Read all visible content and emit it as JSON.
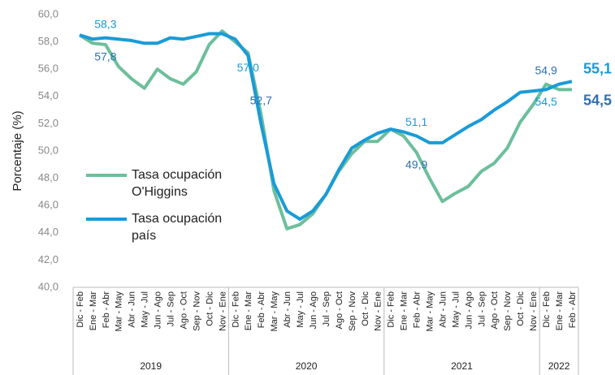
{
  "chart_data": {
    "type": "line",
    "y_label": "Porcentaje (%)",
    "ylim": [
      40,
      60
    ],
    "yticks": [
      {
        "value": 40,
        "label": "40,0"
      },
      {
        "value": 42,
        "label": "42,0"
      },
      {
        "value": 44,
        "label": "44,0"
      },
      {
        "value": 46,
        "label": "46,0"
      },
      {
        "value": 48,
        "label": "48,0"
      },
      {
        "value": 50,
        "label": "50,0"
      },
      {
        "value": 52,
        "label": "52,0"
      },
      {
        "value": 54,
        "label": "54,0"
      },
      {
        "value": 56,
        "label": "56,0"
      },
      {
        "value": 58,
        "label": "58,0"
      },
      {
        "value": 60,
        "label": "60,0"
      }
    ],
    "grid": false,
    "legend": "left",
    "groups": [
      {
        "name": "2019",
        "categories": [
          "Dic - Feb",
          "Ene - Mar",
          "Feb - Abr",
          "Mar - May",
          "Abr - Jun",
          "May - Jul",
          "Jun - Ago",
          "Jul - Sep",
          "Ago - Oct",
          "Sep - Nov",
          "Oct - Dic",
          "Nov - Ene"
        ]
      },
      {
        "name": "2020",
        "categories": [
          "Dic - Feb",
          "Ene - Mar",
          "Feb - Abr",
          "Mar - May",
          "Abr - Jun",
          "May - Jul",
          "Jun - Ago",
          "Jul - Sep",
          "Ago - Oct",
          "Sep - Nov",
          "Oct - Dic",
          "Nov - Ene"
        ]
      },
      {
        "name": "2021",
        "categories": [
          "Dic - Feb",
          "Ene - Mar",
          "Feb - Abr",
          "Mar - May",
          "Abr - Jun",
          "May - Jul",
          "Jun - Ago",
          "Jul - Sep",
          "Ago - Oct",
          "Sep - Nov",
          "Oct - Dic",
          "Nov - Ene"
        ]
      },
      {
        "name": "2022",
        "categories": [
          "Dic - Feb",
          "Ene - Mar",
          "Feb - Abr"
        ]
      }
    ],
    "series": [
      {
        "name": "Tasa ocupación O'Higgins",
        "color": "#6cbf9b",
        "label_color": "#2e6fb5",
        "values": [
          58.5,
          57.9,
          57.8,
          56.2,
          55.3,
          54.6,
          56.0,
          55.3,
          54.9,
          55.8,
          57.8,
          58.8,
          58.0,
          57.2,
          52.7,
          47.1,
          44.3,
          44.6,
          45.4,
          46.8,
          48.5,
          49.8,
          50.7,
          50.7,
          51.6,
          51.1,
          49.9,
          48.0,
          46.3,
          46.9,
          47.4,
          48.5,
          49.1,
          50.2,
          52.1,
          53.4,
          54.9,
          54.5,
          54.5
        ],
        "value_labels": [
          null,
          null,
          "57,8",
          null,
          null,
          null,
          null,
          null,
          null,
          null,
          null,
          null,
          null,
          null,
          "52,7",
          null,
          null,
          null,
          null,
          null,
          null,
          null,
          null,
          null,
          null,
          null,
          "49,9",
          null,
          null,
          null,
          null,
          null,
          null,
          null,
          null,
          null,
          "54,9",
          null,
          "54,5"
        ]
      },
      {
        "name": "Tasa ocupación país",
        "color": "#1a9bd7",
        "label_color": "#1a9bd7",
        "values": [
          58.5,
          58.2,
          58.3,
          58.2,
          58.1,
          57.9,
          57.9,
          58.3,
          58.2,
          58.4,
          58.6,
          58.6,
          58.2,
          57.0,
          52.0,
          47.6,
          45.6,
          45.0,
          45.6,
          46.8,
          48.6,
          50.2,
          50.8,
          51.3,
          51.6,
          51.4,
          51.1,
          50.6,
          50.6,
          51.2,
          51.8,
          52.3,
          53.0,
          53.6,
          54.3,
          54.4,
          54.5,
          54.9,
          55.1
        ],
        "value_labels": [
          null,
          null,
          "58,3",
          null,
          null,
          null,
          null,
          null,
          null,
          null,
          null,
          null,
          null,
          "57,0",
          null,
          null,
          null,
          null,
          null,
          null,
          null,
          null,
          null,
          null,
          null,
          null,
          "51,1",
          null,
          null,
          null,
          null,
          null,
          null,
          null,
          null,
          null,
          "54,5",
          null,
          "55,1"
        ]
      }
    ]
  }
}
